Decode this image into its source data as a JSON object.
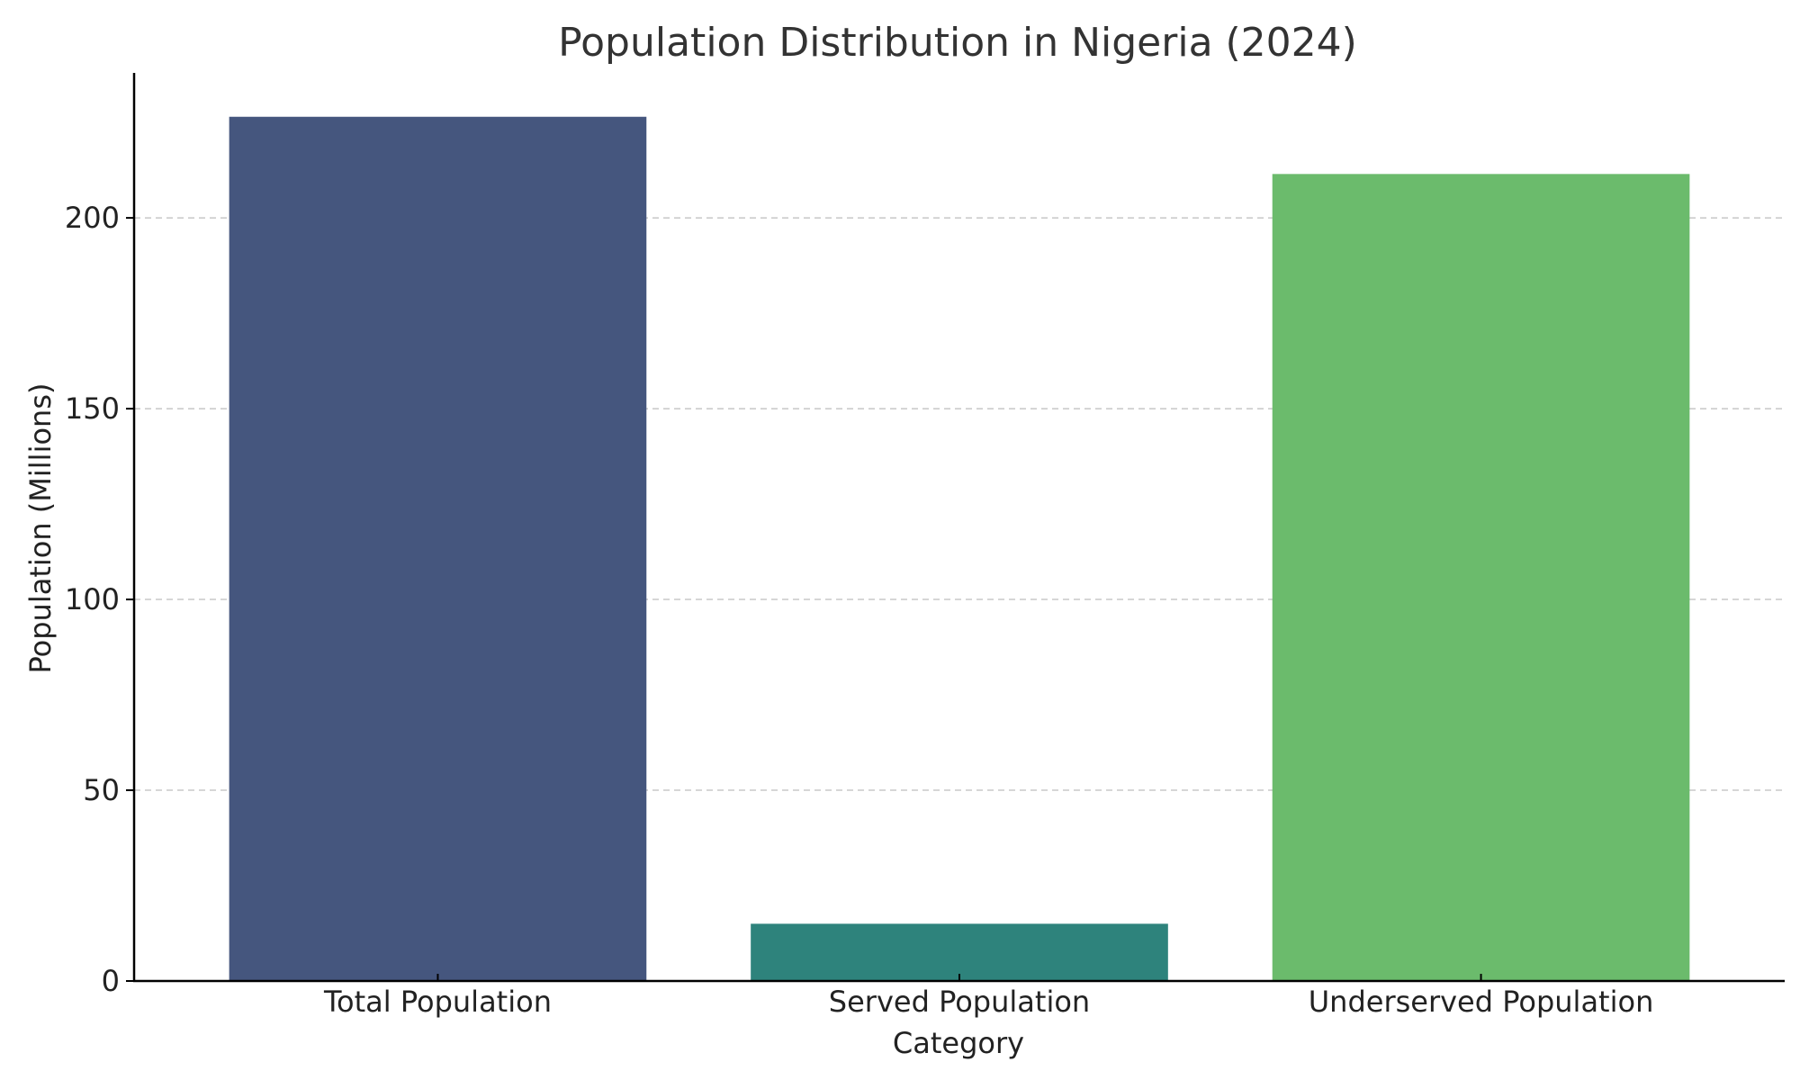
{
  "chart_data": {
    "type": "bar",
    "title": "Population Distribution in Nigeria (2024)",
    "xlabel": "Category",
    "ylabel": "Population (Millions)",
    "categories": [
      "Total Population",
      "Served Population",
      "Underserved Population"
    ],
    "values": [
      226.5,
      15.0,
      211.5
    ],
    "colors": [
      "#45567e",
      "#2e837c",
      "#6bbb6c"
    ],
    "ylim": [
      0,
      238
    ],
    "yticks": [
      0,
      50,
      100,
      150,
      200
    ],
    "ytick_labels": [
      "0",
      "50",
      "100",
      "150",
      "200"
    ],
    "grid": "y-dashed",
    "legend": "none"
  }
}
